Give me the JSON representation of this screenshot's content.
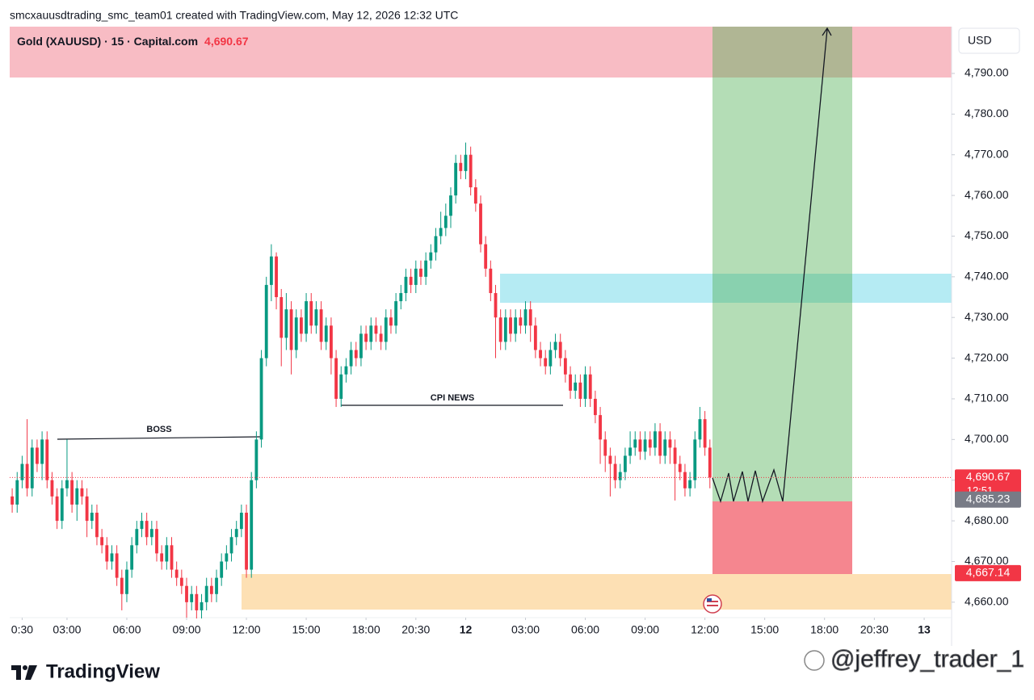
{
  "header": {
    "caption": "smcxauusdtrading_smc_team01 created with TradingView.com, May 12, 2026 12:32 UTC"
  },
  "footer": {
    "brand": "TradingView",
    "watermark": "@jeffrey_trader_1"
  },
  "chart_data": {
    "type": "candlestick",
    "title": "Gold (XAUUSD) · 15 · Capital.com",
    "currency": "USD",
    "up_color": "#089981",
    "down_color": "#f23645",
    "grid": false,
    "annotations": [
      "BOSS",
      "CPI NEWS"
    ],
    "countdown": "12:51",
    "price_labels": [
      {
        "value": 4690.67,
        "label": "4,690.67",
        "color": "#f23645"
      },
      {
        "value": 4685.23,
        "label": "4,685.23",
        "color": "#787b86"
      },
      {
        "value": 4667.14,
        "label": "4,667.14",
        "color": "#f23645"
      }
    ],
    "xlim": [
      -11.5,
      177.5
    ],
    "ylim": [
      4656.2,
      4801.5
    ],
    "xticks": [
      {
        "value": -9,
        "label": "0:30"
      },
      {
        "value": 0,
        "label": "03:00"
      },
      {
        "value": 12,
        "label": "06:00"
      },
      {
        "value": 24,
        "label": "09:00"
      },
      {
        "value": 36,
        "label": "12:00"
      },
      {
        "value": 48,
        "label": "15:00"
      },
      {
        "value": 60,
        "label": "18:00"
      },
      {
        "value": 70,
        "label": "20:30"
      },
      {
        "value": 80,
        "label": "12"
      },
      {
        "value": 92,
        "label": "03:00"
      },
      {
        "value": 104,
        "label": "06:00"
      },
      {
        "value": 116,
        "label": "09:00"
      },
      {
        "value": 128,
        "label": "12:00"
      },
      {
        "value": 140,
        "label": "15:00"
      },
      {
        "value": 152,
        "label": "18:00"
      },
      {
        "value": 162,
        "label": "20:30"
      },
      {
        "value": 172,
        "label": "13"
      }
    ],
    "yticks": [
      {
        "value": 4660,
        "label": "4,660.00"
      },
      {
        "value": 4670,
        "label": "4,670.00"
      },
      {
        "value": 4680,
        "label": "4,680.00"
      },
      {
        "value": 4690,
        "label": "4,690.00"
      },
      {
        "value": 4700,
        "label": "4,700.00"
      },
      {
        "value": 4710,
        "label": "4,710.00"
      },
      {
        "value": 4720,
        "label": "4,720.00"
      },
      {
        "value": 4730,
        "label": "4,730.00"
      },
      {
        "value": 4740,
        "label": "4,740.00"
      },
      {
        "value": 4750,
        "label": "4,750.00"
      },
      {
        "value": 4760,
        "label": "4,760.00"
      },
      {
        "value": 4770,
        "label": "4,770.00"
      },
      {
        "value": 4780,
        "label": "4,780.00"
      },
      {
        "value": 4790,
        "label": "4,790.00"
      }
    ],
    "x": [
      -11,
      -10,
      -9,
      -8,
      -7,
      -6,
      -5,
      -4,
      -3,
      -2,
      -1,
      0,
      1,
      2,
      3,
      4,
      5,
      6,
      7,
      8,
      9,
      10,
      11,
      12,
      13,
      14,
      15,
      16,
      17,
      18,
      19,
      20,
      21,
      22,
      23,
      24,
      25,
      26,
      27,
      28,
      29,
      30,
      31,
      32,
      33,
      34,
      35,
      36,
      37,
      38,
      39,
      40,
      41,
      42,
      43,
      44,
      45,
      46,
      47,
      48,
      49,
      50,
      51,
      52,
      53,
      54,
      55,
      56,
      57,
      58,
      59,
      60,
      61,
      62,
      63,
      64,
      65,
      66,
      67,
      68,
      69,
      70,
      71,
      72,
      73,
      74,
      75,
      76,
      77,
      78,
      79,
      80,
      81,
      82,
      83,
      84,
      85,
      86,
      87,
      88,
      89,
      90,
      91,
      92,
      93,
      94,
      95,
      96,
      97,
      98,
      99,
      100,
      101,
      102,
      103,
      104,
      105,
      106,
      107,
      108,
      109,
      110,
      111,
      112,
      113,
      114,
      115,
      116,
      117,
      118,
      119,
      120,
      121,
      122,
      123,
      124,
      125,
      126,
      127,
      128,
      129
    ],
    "open": [
      4686,
      4684,
      4690,
      4694,
      4688,
      4698,
      4694,
      4700,
      4690,
      4686,
      4680,
      4688,
      4690,
      4684,
      4688,
      4686,
      4680,
      4682,
      4676,
      4674,
      4670,
      4672,
      4666,
      4662,
      4668,
      4674,
      4678,
      4680,
      4676,
      4678,
      4672,
      4670,
      4674,
      4668,
      4666,
      4664,
      4660,
      4662,
      4658,
      4660,
      4664,
      4662,
      4666,
      4670,
      4672,
      4676,
      4678,
      4682,
      4668,
      4690,
      4700,
      4720,
      4738,
      4745,
      4735,
      4725,
      4732,
      4722,
      4730,
      4726,
      4734,
      4728,
      4732,
      4724,
      4728,
      4720,
      4710,
      4716,
      4718,
      4722,
      4720,
      4726,
      4724,
      4728,
      4726,
      4724,
      4730,
      4728,
      4734,
      4736,
      4740,
      4738,
      4742,
      4740,
      4744,
      4746,
      4750,
      4752,
      4755,
      4760,
      4768,
      4766,
      4770,
      4762,
      4758,
      4748,
      4742,
      4736,
      4730,
      4724,
      4730,
      4726,
      4730,
      4728,
      4732,
      4728,
      4722,
      4720,
      4718,
      4722,
      4724,
      4720,
      4716,
      4712,
      4714,
      4710,
      4716,
      4710,
      4706,
      4700,
      4696,
      4694,
      4690,
      4692,
      4696,
      4698,
      4700,
      4697,
      4700,
      4698,
      4702,
      4696,
      4700,
      4698,
      4694,
      4692,
      4688,
      4690,
      4700,
      4705,
      4698
    ],
    "high": [
      4688,
      4692,
      4696,
      4705,
      4700,
      4700,
      4702,
      4702,
      4692,
      4688,
      4690,
      4700,
      4692,
      4690,
      4690,
      4688,
      4684,
      4684,
      4678,
      4676,
      4674,
      4674,
      4668,
      4670,
      4676,
      4680,
      4682,
      4682,
      4680,
      4680,
      4674,
      4676,
      4676,
      4670,
      4668,
      4666,
      4664,
      4664,
      4662,
      4666,
      4666,
      4668,
      4672,
      4674,
      4678,
      4680,
      4684,
      4684,
      4692,
      4702,
      4722,
      4740,
      4748,
      4746,
      4737,
      4736,
      4734,
      4732,
      4732,
      4736,
      4736,
      4734,
      4734,
      4730,
      4730,
      4722,
      4718,
      4720,
      4724,
      4724,
      4728,
      4728,
      4730,
      4730,
      4728,
      4732,
      4732,
      4736,
      4738,
      4742,
      4742,
      4744,
      4744,
      4746,
      4748,
      4752,
      4756,
      4758,
      4762,
      4770,
      4770,
      4773,
      4772,
      4764,
      4760,
      4750,
      4744,
      4738,
      4732,
      4732,
      4732,
      4732,
      4732,
      4734,
      4734,
      4730,
      4724,
      4722,
      4724,
      4726,
      4726,
      4722,
      4718,
      4716,
      4716,
      4718,
      4718,
      4712,
      4708,
      4702,
      4698,
      4696,
      4694,
      4698,
      4702,
      4702,
      4702,
      4702,
      4702,
      4704,
      4704,
      4702,
      4702,
      4700,
      4696,
      4694,
      4692,
      4702,
      4708,
      4707,
      4700
    ],
    "low": [
      4682,
      4682,
      4688,
      4686,
      4686,
      4692,
      4690,
      4688,
      4684,
      4678,
      4678,
      4686,
      4682,
      4680,
      4684,
      4676,
      4678,
      4674,
      4672,
      4668,
      4668,
      4664,
      4658,
      4660,
      4666,
      4672,
      4676,
      4674,
      4674,
      4670,
      4668,
      4668,
      4666,
      4664,
      4662,
      4656,
      4658,
      4656,
      4656,
      4658,
      4660,
      4660,
      4664,
      4668,
      4670,
      4674,
      4676,
      4666,
      4666,
      4688,
      4698,
      4718,
      4734,
      4732,
      4718,
      4722,
      4716,
      4720,
      4724,
      4724,
      4726,
      4726,
      4722,
      4722,
      4716,
      4708,
      4708,
      4714,
      4716,
      4718,
      4718,
      4722,
      4722,
      4724,
      4722,
      4722,
      4726,
      4726,
      4732,
      4734,
      4736,
      4736,
      4738,
      4738,
      4742,
      4744,
      4748,
      4750,
      4752,
      4758,
      4764,
      4764,
      4760,
      4756,
      4746,
      4740,
      4734,
      4720,
      4722,
      4722,
      4724,
      4724,
      4726,
      4726,
      4724,
      4720,
      4718,
      4716,
      4716,
      4720,
      4718,
      4714,
      4710,
      4710,
      4708,
      4708,
      4708,
      4704,
      4694,
      4692,
      4686,
      4688,
      4688,
      4690,
      4694,
      4696,
      4695,
      4695,
      4696,
      4696,
      4694,
      4694,
      4694,
      4685,
      4690,
      4686,
      4686,
      4688,
      4698,
      4696,
      4688
    ],
    "close": [
      4684,
      4690,
      4694,
      4688,
      4698,
      4694,
      4700,
      4690,
      4686,
      4680,
      4688,
      4690,
      4684,
      4688,
      4686,
      4680,
      4682,
      4676,
      4674,
      4670,
      4672,
      4666,
      4662,
      4668,
      4674,
      4678,
      4680,
      4676,
      4678,
      4672,
      4670,
      4674,
      4668,
      4666,
      4664,
      4660,
      4662,
      4658,
      4660,
      4664,
      4662,
      4666,
      4670,
      4672,
      4676,
      4678,
      4682,
      4668,
      4690,
      4700,
      4720,
      4738,
      4745,
      4735,
      4725,
      4732,
      4722,
      4730,
      4726,
      4734,
      4728,
      4732,
      4724,
      4728,
      4720,
      4710,
      4716,
      4718,
      4722,
      4720,
      4726,
      4724,
      4728,
      4726,
      4724,
      4730,
      4728,
      4734,
      4736,
      4740,
      4738,
      4742,
      4740,
      4744,
      4746,
      4750,
      4752,
      4755,
      4760,
      4768,
      4766,
      4770,
      4762,
      4758,
      4748,
      4742,
      4736,
      4730,
      4724,
      4730,
      4726,
      4730,
      4728,
      4732,
      4728,
      4722,
      4720,
      4718,
      4722,
      4724,
      4720,
      4716,
      4712,
      4714,
      4710,
      4716,
      4710,
      4706,
      4700,
      4696,
      4694,
      4690,
      4692,
      4696,
      4698,
      4700,
      4697,
      4700,
      4698,
      4702,
      4696,
      4700,
      4698,
      4694,
      4692,
      4688,
      4690,
      4700,
      4705,
      4698,
      4690.67
    ]
  }
}
